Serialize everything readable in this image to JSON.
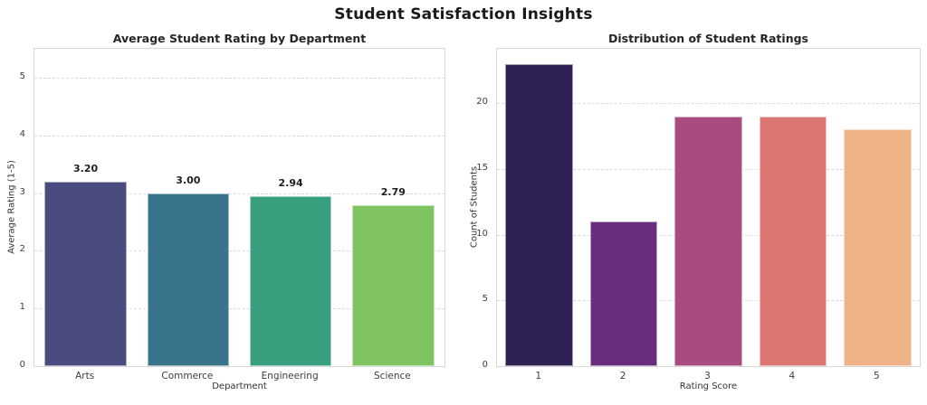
{
  "figure_title": "Student Satisfaction Insights",
  "chart_data": [
    {
      "type": "bar",
      "title": "Average Student Rating by Department",
      "xlabel": "Department",
      "ylabel": "Average Rating (1-5)",
      "categories": [
        "Arts",
        "Commerce",
        "Engineering",
        "Science"
      ],
      "values": [
        3.2,
        3.0,
        2.94,
        2.79
      ],
      "bar_labels": [
        "3.20",
        "3.00",
        "2.94",
        "2.79"
      ],
      "colors": [
        "#4a4b7f",
        "#38748a",
        "#38a07e",
        "#7fc360"
      ],
      "yticks": [
        0,
        1,
        2,
        3,
        4,
        5
      ],
      "ylim": [
        0,
        5.5
      ],
      "grid": true,
      "legend": "none"
    },
    {
      "type": "bar",
      "title": "Distribution of Student Ratings",
      "xlabel": "Rating Score",
      "ylabel": "Count of Students",
      "categories": [
        "1",
        "2",
        "3",
        "4",
        "5"
      ],
      "values": [
        23,
        11,
        19,
        19,
        18
      ],
      "bar_labels": [],
      "colors": [
        "#302155",
        "#6a2d7d",
        "#a94b7e",
        "#db7672",
        "#eeb488"
      ],
      "yticks": [
        0,
        5,
        10,
        15,
        20
      ],
      "ylim": [
        0,
        24.15
      ],
      "grid": true,
      "legend": "none"
    }
  ]
}
